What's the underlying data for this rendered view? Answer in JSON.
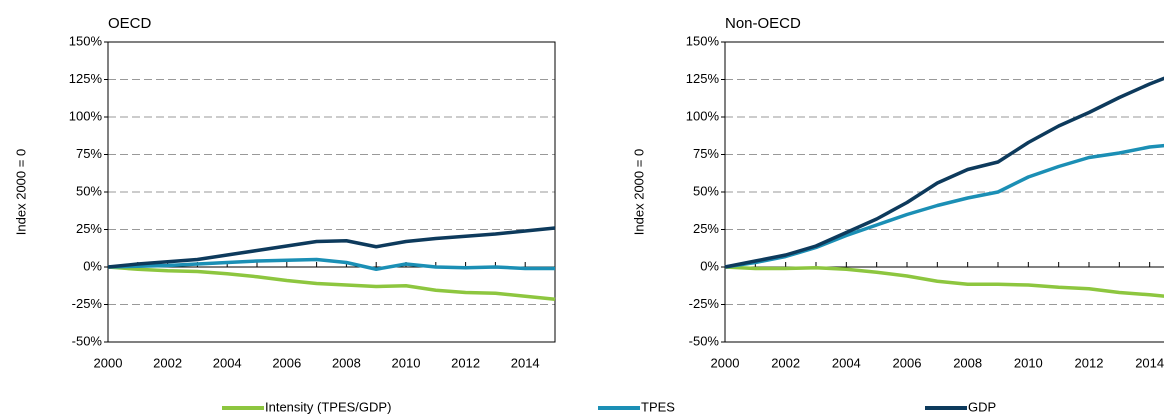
{
  "chart_data": [
    {
      "type": "line",
      "title": "OECD",
      "ylabel": "Index 2000 = 0",
      "x": [
        2000,
        2001,
        2002,
        2003,
        2004,
        2005,
        2006,
        2007,
        2008,
        2009,
        2010,
        2011,
        2012,
        2013,
        2014,
        2015
      ],
      "xlim": [
        2000,
        2015
      ],
      "xticks": [
        2000,
        2002,
        2004,
        2006,
        2008,
        2010,
        2012,
        2014
      ],
      "ylim": [
        -50,
        150
      ],
      "yticks": [
        {
          "value": -50,
          "label": "-50%"
        },
        {
          "value": -25,
          "label": "-25%"
        },
        {
          "value": 0,
          "label": "0%"
        },
        {
          "value": 25,
          "label": "25%"
        },
        {
          "value": 50,
          "label": "50%"
        },
        {
          "value": 75,
          "label": "75%"
        },
        {
          "value": 100,
          "label": "100%"
        },
        {
          "value": 125,
          "label": "125%"
        },
        {
          "value": 150,
          "label": "150%"
        }
      ],
      "grid": true,
      "series": [
        {
          "name": "Intensity (TPES/GDP)",
          "color": "#8dc63f",
          "values": [
            0,
            -1.5,
            -2.5,
            -3,
            -4.5,
            -6.5,
            -9,
            -11,
            -12,
            -13,
            -12.5,
            -15.5,
            -17,
            -17.5,
            -19.5,
            -21.5
          ]
        },
        {
          "name": "TPES",
          "color": "#1b8fb5",
          "values": [
            0,
            0.5,
            1,
            2,
            3,
            4,
            4.5,
            5,
            3,
            -1.5,
            2,
            0,
            -0.5,
            0,
            -1,
            -1
          ]
        },
        {
          "name": "GDP",
          "color": "#0d3a5c",
          "values": [
            0,
            2,
            3.5,
            5,
            8,
            11,
            14,
            17,
            17.5,
            13.5,
            17,
            19,
            20.5,
            22,
            24,
            26
          ]
        }
      ]
    },
    {
      "type": "line",
      "title": "Non-OECD",
      "ylabel": "Index 2000 = 0",
      "x": [
        2000,
        2001,
        2002,
        2003,
        2004,
        2005,
        2006,
        2007,
        2008,
        2009,
        2010,
        2011,
        2012,
        2013,
        2014,
        2015
      ],
      "xlim": [
        2000,
        2015
      ],
      "xticks": [
        2000,
        2002,
        2004,
        2006,
        2008,
        2010,
        2012,
        2014
      ],
      "ylim": [
        -50,
        150
      ],
      "yticks": [
        {
          "value": -50,
          "label": "-50%"
        },
        {
          "value": -25,
          "label": "-25%"
        },
        {
          "value": 0,
          "label": "0%"
        },
        {
          "value": 25,
          "label": "25%"
        },
        {
          "value": 50,
          "label": "50%"
        },
        {
          "value": 75,
          "label": "75%"
        },
        {
          "value": 100,
          "label": "100%"
        },
        {
          "value": 125,
          "label": "125%"
        },
        {
          "value": 150,
          "label": "150%"
        }
      ],
      "grid": true,
      "series": [
        {
          "name": "Intensity (TPES/GDP)",
          "color": "#8dc63f",
          "values": [
            0,
            -1,
            -1,
            -0.5,
            -1.5,
            -3.5,
            -6,
            -9.5,
            -11.5,
            -11.5,
            -12,
            -13.5,
            -14.5,
            -17,
            -18.5,
            -20.5
          ]
        },
        {
          "name": "TPES",
          "color": "#1b8fb5",
          "values": [
            0,
            3,
            7,
            13,
            21,
            28,
            35,
            41,
            46,
            50,
            60,
            67,
            73,
            76,
            80,
            82
          ]
        },
        {
          "name": "GDP",
          "color": "#0d3a5c",
          "values": [
            0,
            4,
            8,
            14,
            23,
            32,
            43,
            56,
            65,
            70,
            83,
            94,
            103,
            113,
            122,
            130
          ]
        }
      ]
    }
  ]
}
